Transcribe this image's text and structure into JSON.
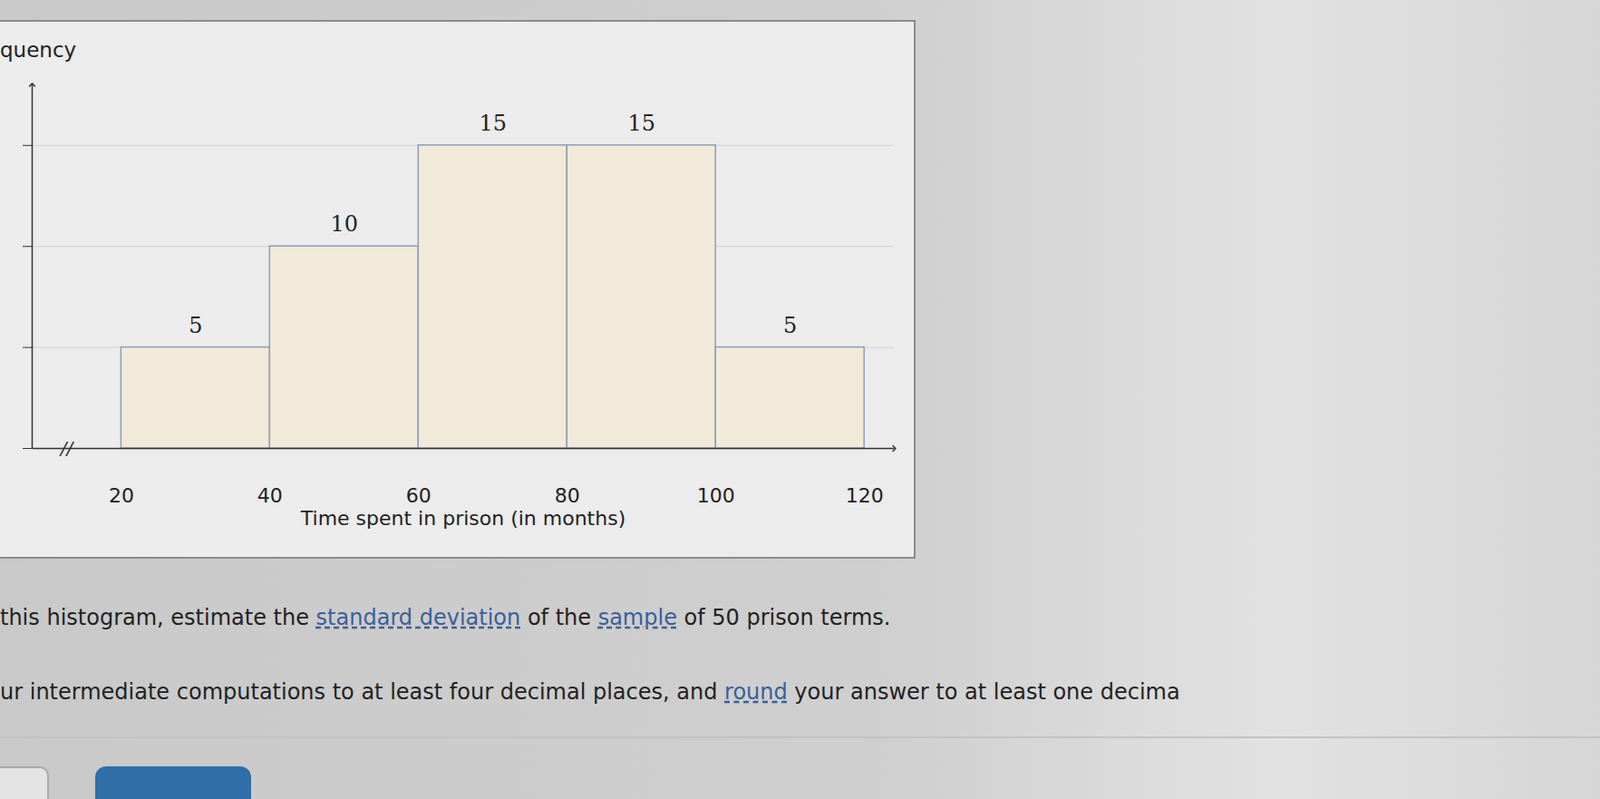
{
  "chart_data": {
    "type": "histogram",
    "y_label": "quency",
    "x_label": "Time spent in prison (in months)",
    "bins": [
      20,
      40,
      60,
      80,
      100,
      120
    ],
    "values": [
      5,
      10,
      15,
      15,
      5
    ],
    "xlim": [
      8,
      124
    ],
    "ylim": [
      0,
      18
    ],
    "xticks": [
      20,
      40,
      60,
      80,
      100,
      120
    ],
    "yticks": [
      0,
      5,
      10,
      15
    ],
    "tick_labels": "x",
    "grid": true,
    "data_labels": true,
    "color": "#f2ead8",
    "axis_break": "//"
  },
  "question": {
    "lines": [
      "this histogram, estimate the standard deviation of the sample of 50 prison terms.",
      "ur intermediate computations to at least four decimal places, and round your answer to at least one decima"
    ],
    "links": [
      "standard deviation",
      "sample",
      "round"
    ]
  }
}
